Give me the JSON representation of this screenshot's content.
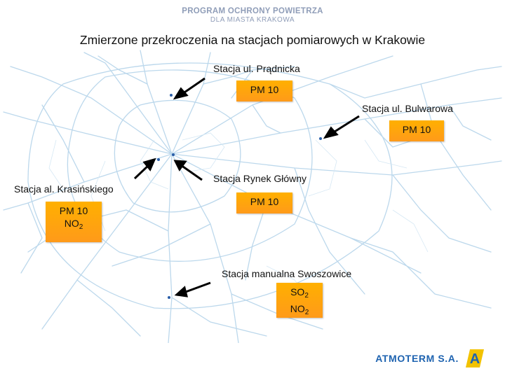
{
  "header": {
    "program_line1": "PROGRAM OCHRONY POWIETRZA",
    "program_line2": "DLA MIASTA KRAKOWA"
  },
  "title": "Zmierzone przekroczenia na stacjach pomiarowych w Krakowie",
  "stations": {
    "pradnicka": {
      "name": "Stacja ul. Prądnicka",
      "pollutants": [
        "PM 10"
      ]
    },
    "bulwarowa": {
      "name": "Stacja ul. Bulwarowa",
      "pollutants": [
        "PM 10"
      ]
    },
    "rynek": {
      "name": "Stacja Rynek Główny",
      "pollutants": [
        "PM 10"
      ]
    },
    "krasinskiego": {
      "name": "Stacja al. Krasińskiego",
      "pollutant_1": "PM 10",
      "pollutant_2_base": "NO",
      "pollutant_2_sub": "2"
    },
    "swoszowice": {
      "name": "Stacja manualna Swoszowice",
      "pollutant_1_base": "SO",
      "pollutant_1_sub": "2",
      "pollutant_2_base": "NO",
      "pollutant_2_sub": "2"
    }
  },
  "footer": {
    "company": "ATMOTERM S.A.",
    "logo_letter": "A"
  },
  "colors": {
    "badge": "#ffa500",
    "roads": "#b8d6ea",
    "brand_blue": "#1e63b0",
    "brand_grey": "#8f9db8"
  }
}
